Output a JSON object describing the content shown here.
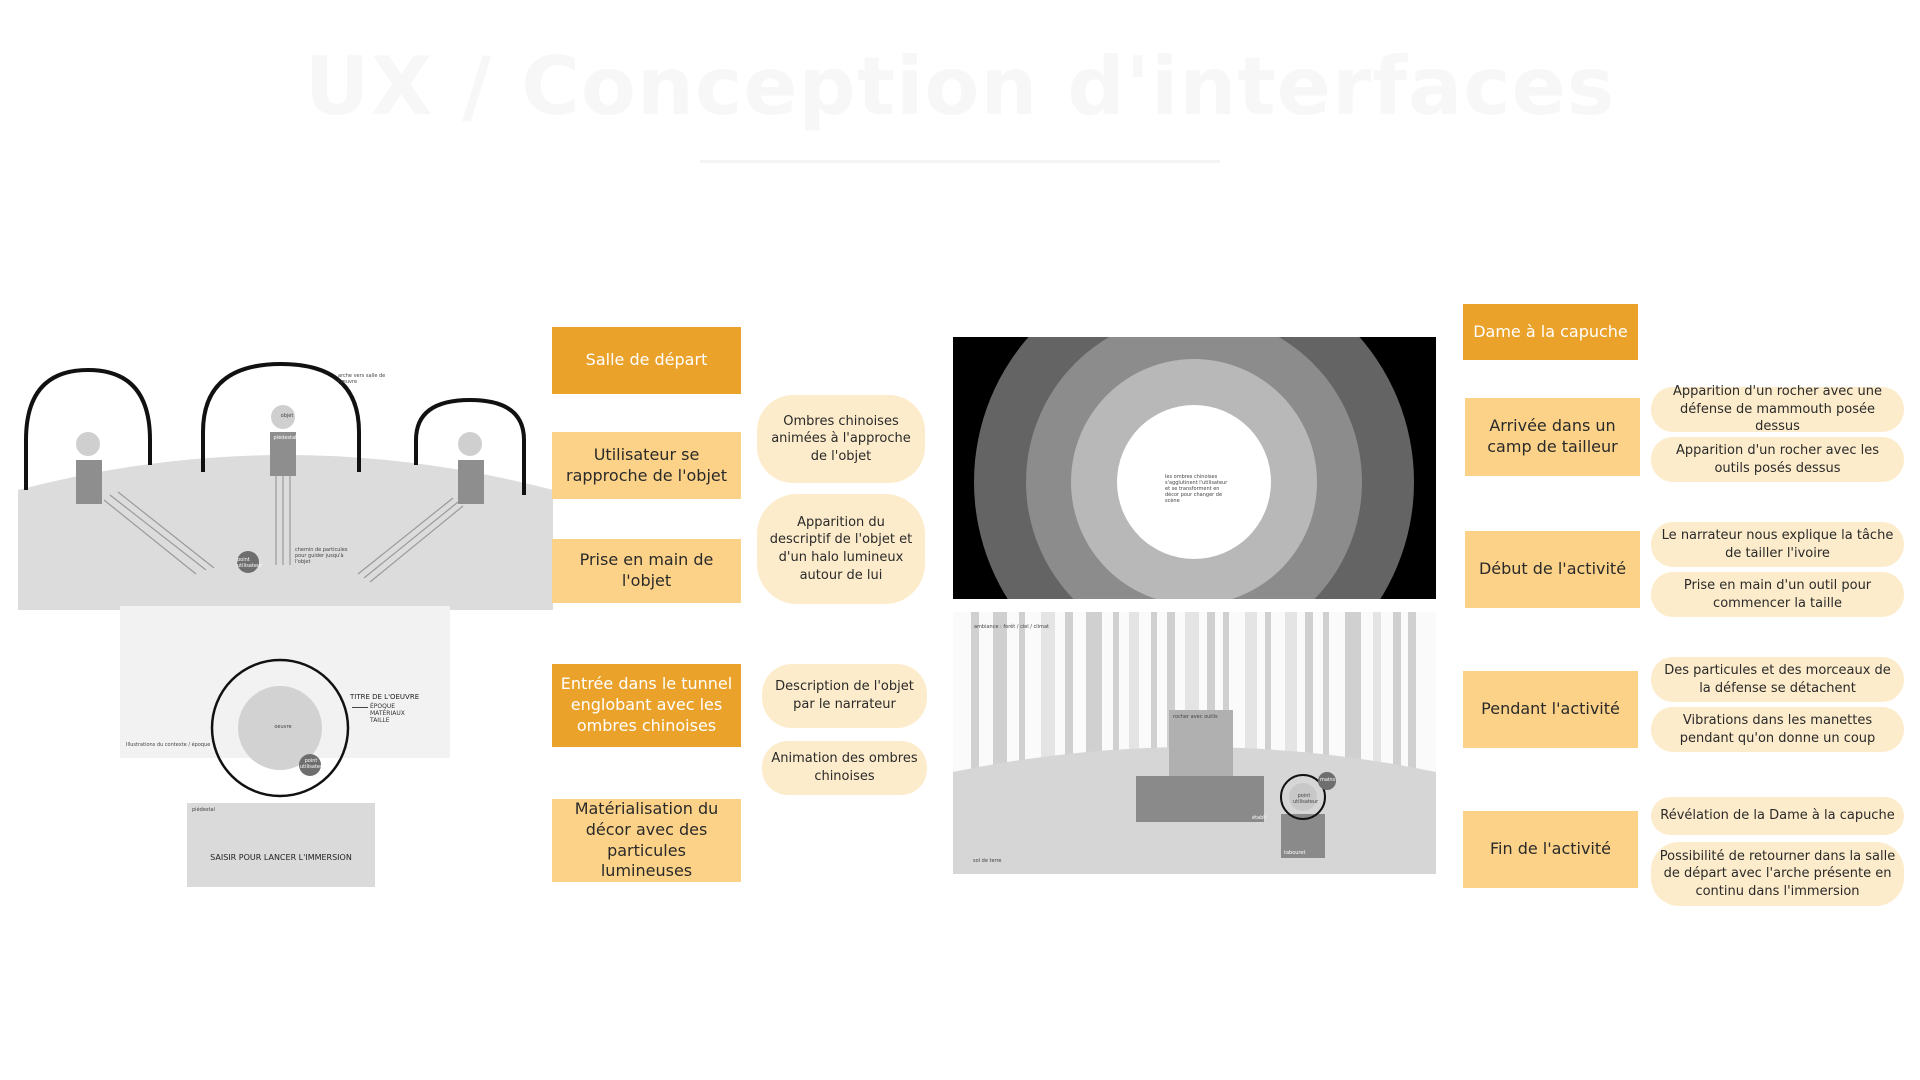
{
  "title": "UX / Conception d'interfaces",
  "left_flow": {
    "steps": [
      {
        "label": "Salle de départ",
        "style": "dark"
      },
      {
        "label": "Utilisateur se rapproche de l'objet",
        "style": "light"
      },
      {
        "label": "Prise en main de l'objet",
        "style": "light"
      },
      {
        "label": "Entrée dans le tunnel englobant avec les ombres chinoises",
        "style": "dark"
      },
      {
        "label": "Matérialisation du décor avec des particules lumineuses",
        "style": "light"
      }
    ],
    "notes": [
      "Ombres chinoises animées à l'approche de l'objet",
      "Apparition du descriptif de l'objet et d'un halo lumineux autour de lui",
      "Description de l'objet par le narrateur",
      "Animation des ombres chinoises"
    ]
  },
  "right_flow": {
    "header": "Dame à la capuche",
    "steps": [
      {
        "label": "Arrivée dans un camp de tailleur",
        "notes": [
          "Apparition d'un rocher avec une défense de mammouth posée dessus",
          "Apparition d'un rocher avec les outils posés dessus"
        ]
      },
      {
        "label": "Début de l'activité",
        "notes": [
          "Le narrateur nous explique la tâche de tailler l'ivoire",
          "Prise en main d'un outil pour commencer la taille"
        ]
      },
      {
        "label": "Pendant l'activité",
        "notes": [
          "Des particules et des morceaux de la défense se détachent",
          "Vibrations dans les manettes pendant qu'on donne un coup"
        ]
      },
      {
        "label": "Fin de l'activité",
        "notes": [
          "Révélation de la Dame à la capuche",
          "Possibilité de retourner dans la salle de départ avec l'arche présente en continu dans l'immersion"
        ]
      }
    ]
  },
  "wireframe_room": {
    "arch_note": "arche vers salle de l'œuvre",
    "object_label": "objet",
    "pedestal_label": "piédestal",
    "user_label": "point utilisateur",
    "ray_note": "chemin de particules pour guider jusqu'à l'objet",
    "title_label": "TITRE DE L'OEUVRE",
    "details": [
      "ÉPOQUE",
      "MATÉRIAUX",
      "TAILLE"
    ],
    "oeuvre_label": "oeuvre",
    "user2_label": "point utilisateur",
    "side_note": "Illustrations du contexte / époque",
    "bottom_tag": "piédestal",
    "cta": "SAISIR POUR LANCER L'IMMERSION"
  },
  "wireframe_tunnel": {
    "center_text": "les ombres chinoises s'agglutinent l'utilisateur et se transforment en décor pour changer de scène"
  },
  "wireframe_camp": {
    "top_note": "ambiance : forêt / ciel / climat",
    "rock_note": "rocher avec outils",
    "table_label": "établi",
    "user_label": "point utilisateur",
    "hand_label": "mains",
    "stool_label": "tabouret",
    "floor_note": "sol de terre"
  }
}
